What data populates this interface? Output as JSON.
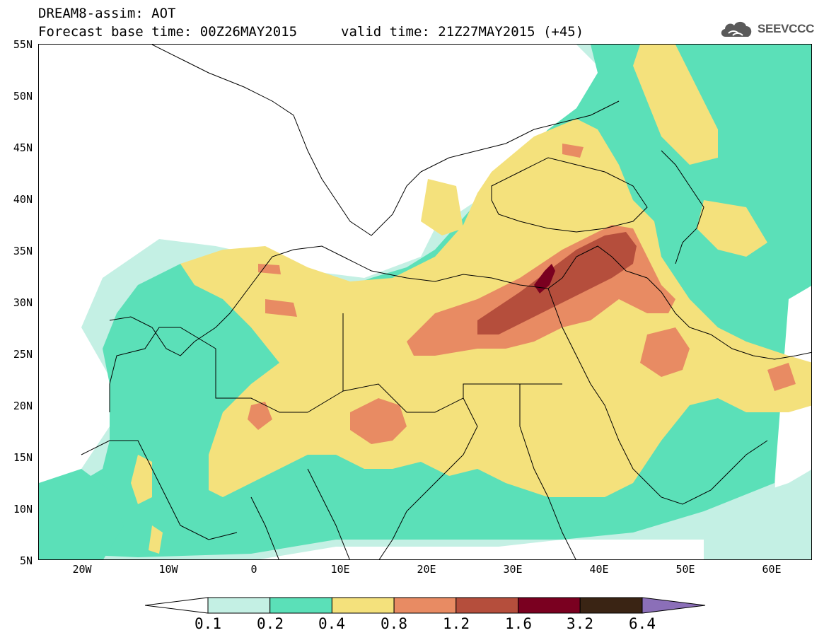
{
  "header": {
    "title_line1": "DREAM8-assim: AOT",
    "title_line2": "Forecast base time: 00Z26MAY2015",
    "valid_time": "valid time: 21Z27MAY2015 (+45)"
  },
  "logo": {
    "text": "SEEVCCC",
    "icon": "cloud-icon"
  },
  "map": {
    "lat_labels": [
      "55N",
      "50N",
      "45N",
      "40N",
      "35N",
      "30N",
      "25N",
      "20N",
      "15N",
      "10N",
      "5N"
    ],
    "lon_labels": [
      "20W",
      "10W",
      "0",
      "10E",
      "20E",
      "30E",
      "40E",
      "50E",
      "60E"
    ]
  },
  "colorbar": {
    "levels": [
      "0.1",
      "0.2",
      "0.4",
      "0.8",
      "1.2",
      "1.6",
      "3.2",
      "6.4"
    ],
    "colors": [
      "#c4f0e4",
      "#5be0b8",
      "#f4e17c",
      "#e88b63",
      "#b54e3c",
      "#7a0020",
      "#3a2414",
      "#8b6fb8"
    ]
  },
  "palette": {
    "aot_0_1": "#c4f0e4",
    "aot_0_2": "#5be0b8",
    "aot_0_4": "#f4e17c",
    "aot_0_8": "#e88b63",
    "aot_1_2": "#b54e3c",
    "aot_1_6": "#7a0020",
    "aot_3_2": "#3a2414",
    "aot_6_4": "#8b6fb8"
  }
}
